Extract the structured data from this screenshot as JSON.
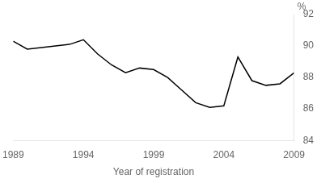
{
  "chart_data": {
    "type": "line",
    "x": [
      1989,
      1990,
      1991,
      1992,
      1993,
      1994,
      1995,
      1996,
      1997,
      1998,
      1999,
      2000,
      2001,
      2002,
      2003,
      2004,
      2005,
      2006,
      2007,
      2008,
      2009
    ],
    "values": [
      90.3,
      89.8,
      89.9,
      90.0,
      90.1,
      90.4,
      89.5,
      88.8,
      88.3,
      88.6,
      88.5,
      88.0,
      87.2,
      86.4,
      86.1,
      86.2,
      89.3,
      87.8,
      87.5,
      87.6,
      88.3
    ],
    "color": "#000000",
    "xlabel": "Year of registration",
    "ylabel": "%",
    "xlim": [
      1989,
      2009
    ],
    "ylim": [
      84,
      92
    ],
    "xticks": [
      1989,
      1994,
      1999,
      2004,
      2009
    ],
    "yticks": [
      84,
      86,
      88,
      90,
      92
    ],
    "grid": false
  }
}
